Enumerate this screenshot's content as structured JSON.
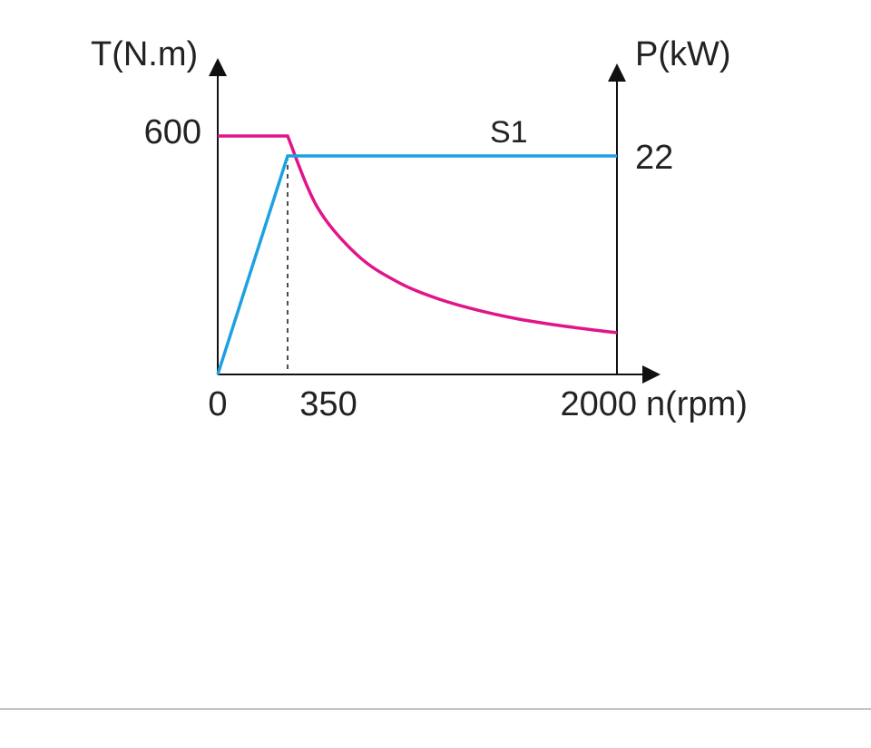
{
  "chart_data": {
    "type": "line",
    "title": "",
    "xlabel": "n(rpm)",
    "ylabel_left": "T(N.m)",
    "ylabel_right": "P(kW)",
    "x_ticks": [
      "0",
      "350",
      "2000"
    ],
    "y_left_ticks": [
      "600"
    ],
    "y_right_ticks": [
      "22"
    ],
    "xlim": [
      0,
      2000
    ],
    "ylim_left": [
      0,
      600
    ],
    "ylim_right": [
      0,
      22
    ],
    "grid": false,
    "annotation": "S1",
    "series": [
      {
        "axis": "left",
        "color": "#e0158a",
        "x": [
          0,
          350,
          500,
          700,
          900,
          1100,
          1300,
          1500,
          1700,
          1900,
          2000
        ],
        "y": [
          600,
          600,
          420,
          300,
          233,
          191,
          162,
          140,
          124,
          111,
          105
        ]
      },
      {
        "axis": "right",
        "color": "#1ea1e0",
        "x": [
          0,
          350,
          2000
        ],
        "y": [
          0,
          22,
          22
        ]
      }
    ],
    "reference_x": 350
  }
}
